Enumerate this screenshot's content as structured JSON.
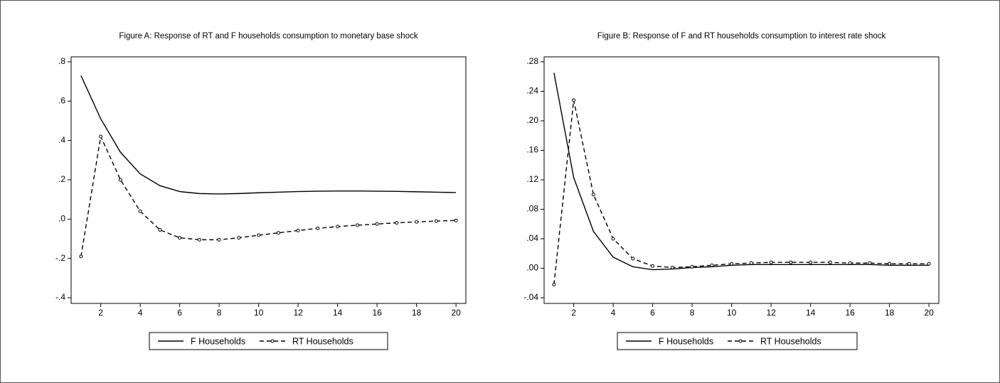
{
  "chart_data": [
    {
      "type": "line",
      "title": "Figure A: Response of RT and F households consumption to monetary base shock",
      "x": [
        1,
        2,
        3,
        4,
        5,
        6,
        7,
        8,
        9,
        10,
        11,
        12,
        13,
        14,
        15,
        16,
        17,
        18,
        19,
        20
      ],
      "xlim": [
        0.5,
        20.5
      ],
      "xticks": [
        2,
        4,
        6,
        8,
        10,
        12,
        14,
        16,
        18,
        20
      ],
      "ylim": [
        -0.4,
        0.8
      ],
      "yticks": [
        {
          "value": 0.8,
          "label": ".8"
        },
        {
          "value": 0.6,
          "label": ".6"
        },
        {
          "value": 0.4,
          "label": ".4"
        },
        {
          "value": 0.2,
          "label": ".2"
        },
        {
          "value": 0,
          "label": ".0"
        },
        {
          "value": -0.2,
          "label": "-.2"
        },
        {
          "value": -0.4,
          "label": "-.4"
        }
      ],
      "legend": "bottom",
      "series": [
        {
          "name": "F Households",
          "color": "#000000",
          "linestyle": "solid",
          "values": [
            0.73,
            0.51,
            0.34,
            0.23,
            0.17,
            0.14,
            0.13,
            0.128,
            0.13,
            0.134,
            0.137,
            0.14,
            0.142,
            0.143,
            0.143,
            0.142,
            0.141,
            0.139,
            0.137,
            0.135
          ]
        },
        {
          "name": "RT Households",
          "color": "#000000",
          "linestyle": "dashed",
          "marker": "circle",
          "values": [
            -0.19,
            0.42,
            0.2,
            0.04,
            -0.055,
            -0.095,
            -0.105,
            -0.105,
            -0.095,
            -0.082,
            -0.07,
            -0.058,
            -0.047,
            -0.038,
            -0.031,
            -0.025,
            -0.019,
            -0.014,
            -0.01,
            -0.007
          ]
        }
      ]
    },
    {
      "type": "line",
      "title": "Figure B: Response of F and RT households consumption to interest rate shock",
      "x": [
        1,
        2,
        3,
        4,
        5,
        6,
        7,
        8,
        9,
        10,
        11,
        12,
        13,
        14,
        15,
        16,
        17,
        18,
        19,
        20
      ],
      "xlim": [
        0.5,
        20.5
      ],
      "xticks": [
        2,
        4,
        6,
        8,
        10,
        12,
        14,
        16,
        18,
        20
      ],
      "ylim": [
        -0.04,
        0.28
      ],
      "yticks": [
        {
          "value": 0.28,
          "label": ".28"
        },
        {
          "value": 0.24,
          "label": ".24"
        },
        {
          "value": 0.2,
          "label": ".20"
        },
        {
          "value": 0.16,
          "label": ".16"
        },
        {
          "value": 0.12,
          "label": ".12"
        },
        {
          "value": 0.08,
          "label": ".08"
        },
        {
          "value": 0.04,
          "label": ".04"
        },
        {
          "value": 0,
          "label": ".00"
        },
        {
          "value": -0.04,
          "label": "-.04"
        }
      ],
      "legend": "bottom",
      "series": [
        {
          "name": "F Households",
          "color": "#000000",
          "linestyle": "solid",
          "values": [
            0.265,
            0.123,
            0.05,
            0.015,
            0.002,
            -0.002,
            -0.001,
            0.001,
            0.002,
            0.004,
            0.005,
            0.005,
            0.005,
            0.005,
            0.005,
            0.005,
            0.005,
            0.004,
            0.004,
            0.004
          ]
        },
        {
          "name": "RT Households",
          "color": "#000000",
          "linestyle": "dashed",
          "marker": "circle",
          "values": [
            -0.022,
            0.228,
            0.1,
            0.04,
            0.013,
            0.003,
            0.001,
            0.002,
            0.004,
            0.006,
            0.007,
            0.008,
            0.008,
            0.008,
            0.008,
            0.007,
            0.007,
            0.006,
            0.006,
            0.006
          ]
        }
      ]
    }
  ]
}
